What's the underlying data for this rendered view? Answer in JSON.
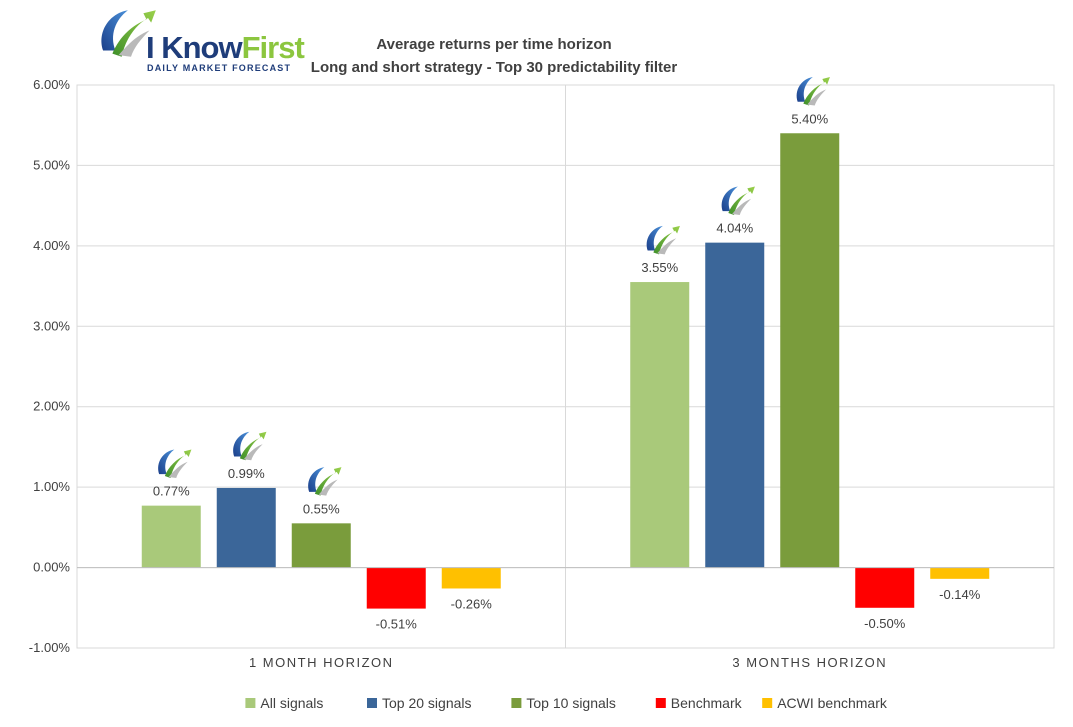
{
  "logo": {
    "text_main": "I Know",
    "text_accent": "First",
    "tagline": "Daily Market Forecast"
  },
  "chart_data": {
    "type": "bar",
    "title": "Average returns per time horizon",
    "subtitle": "Long and short strategy - Top 30 predictability filter",
    "categories": [
      "1 MONTH HORIZON",
      "3 MONTHS HORIZON"
    ],
    "series": [
      {
        "name": "All signals",
        "color": "#a9c97a",
        "values": [
          0.77,
          3.55
        ],
        "labels": [
          "0.77%",
          "3.55%"
        ],
        "badge": true
      },
      {
        "name": "Top 20 signals",
        "color": "#3b6699",
        "values": [
          0.99,
          4.04
        ],
        "labels": [
          "0.99%",
          "4.04%"
        ],
        "badge": true
      },
      {
        "name": "Top 10 signals",
        "color": "#7a9c3c",
        "values": [
          0.55,
          5.4
        ],
        "labels": [
          "0.55%",
          "5.40%"
        ],
        "badge": true
      },
      {
        "name": "Benchmark",
        "color": "#ff0000",
        "values": [
          -0.51,
          -0.5
        ],
        "labels": [
          "-0.51%",
          "-0.50%"
        ],
        "badge": false
      },
      {
        "name": "ACWI benchmark",
        "color": "#ffc000",
        "values": [
          -0.26,
          -0.14
        ],
        "labels": [
          "-0.26%",
          "-0.14%"
        ],
        "badge": false
      }
    ],
    "ylim": [
      -1.0,
      6.0
    ],
    "yticks": [
      -1.0,
      0.0,
      1.0,
      2.0,
      3.0,
      4.0,
      5.0,
      6.0
    ],
    "ytick_labels": [
      "-1.00%",
      "0.00%",
      "1.00%",
      "2.00%",
      "3.00%",
      "4.00%",
      "5.00%",
      "6.00%"
    ],
    "grid": true,
    "legend": "bottom",
    "icon": "i-know-first-logo-icon"
  }
}
